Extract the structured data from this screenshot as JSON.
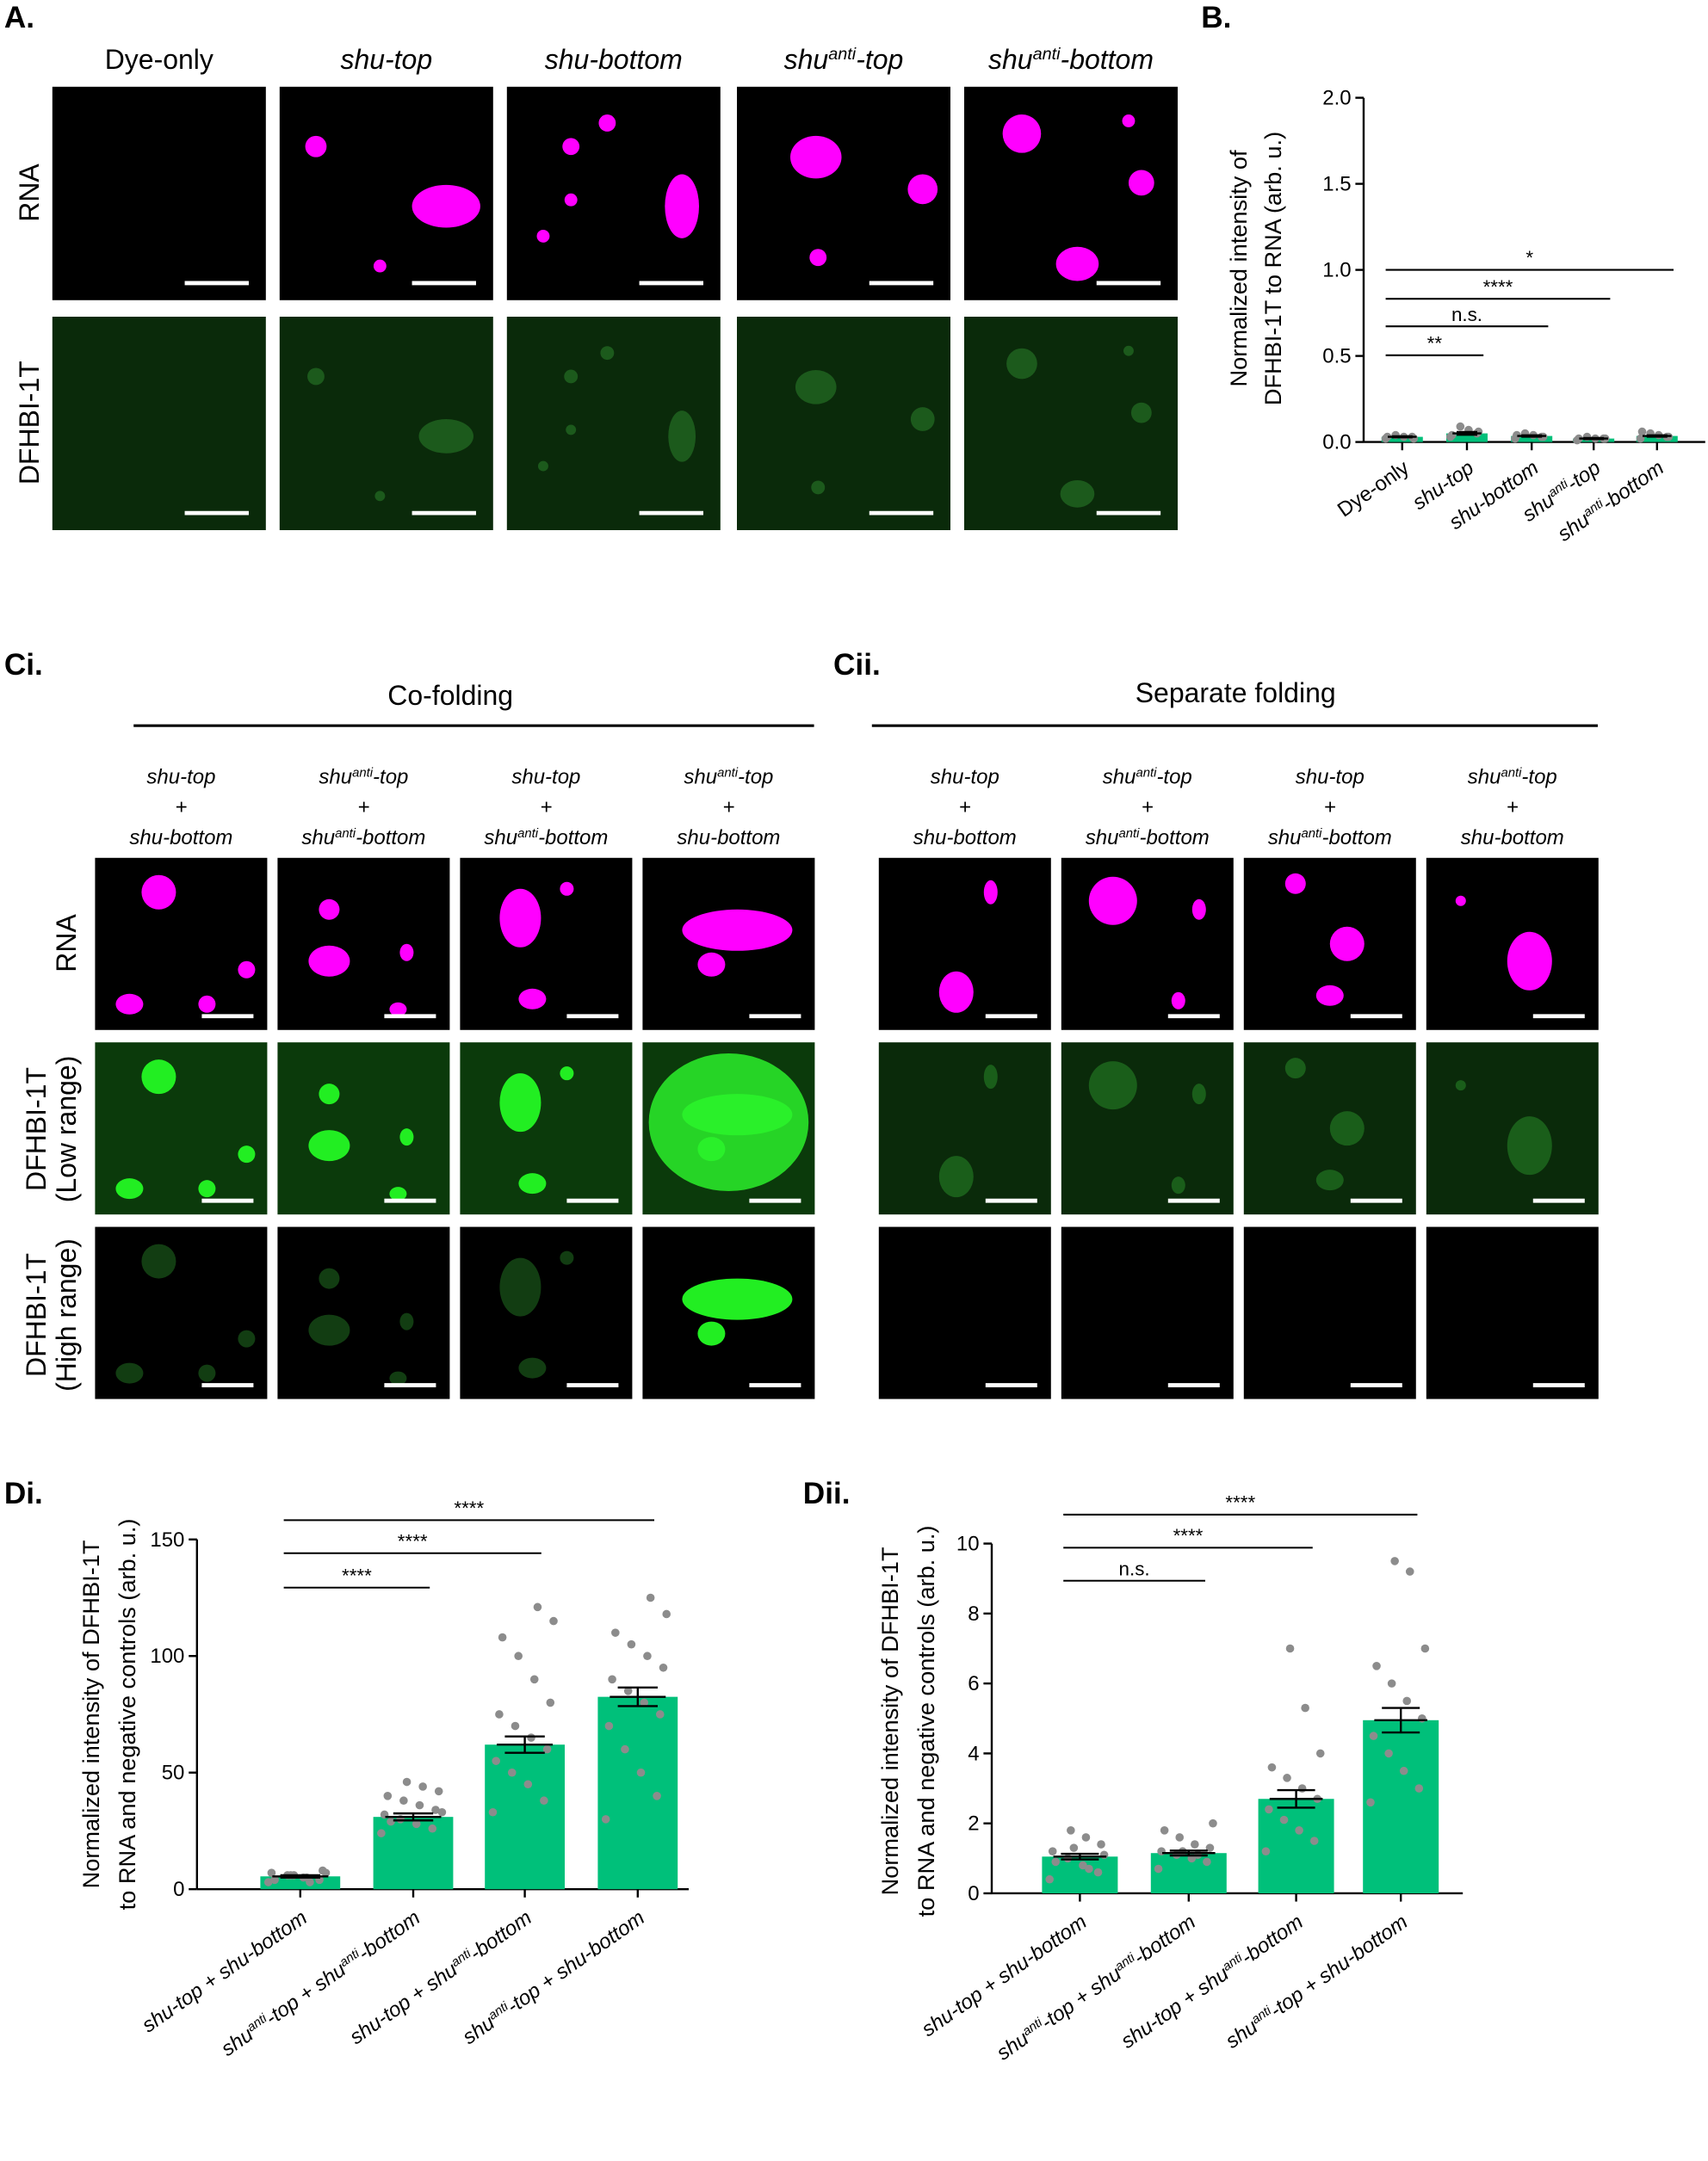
{
  "panel_labels": [
    "A.",
    "B.",
    "Ci.",
    "Cii.",
    "Di.",
    "Dii."
  ],
  "panel_a": {
    "columns": [
      [
        {
          "t": "Dye-only"
        }
      ],
      [
        {
          "t": "shu-top"
        }
      ],
      [
        {
          "t": "shu-bottom"
        }
      ],
      [
        {
          "t": "shu"
        },
        {
          "t": "anti",
          "sup": true
        },
        {
          "t": "-top"
        }
      ],
      [
        {
          "t": "shu"
        },
        {
          "t": "anti",
          "sup": true
        },
        {
          "t": "-bottom"
        }
      ]
    ],
    "rows": [
      "RNA",
      "DFHBI-1T"
    ]
  },
  "panel_c": {
    "headers": [
      "Co-folding",
      "Separate folding"
    ],
    "ci_columns": [
      [
        [
          {
            "t": "shu-top"
          }
        ],
        [
          {
            "t": "+"
          }
        ],
        [
          {
            "t": "shu-bottom"
          }
        ]
      ],
      [
        [
          {
            "t": "shu"
          },
          {
            "t": "anti",
            "sup": true
          },
          {
            "t": "-top"
          }
        ],
        [
          {
            "t": "+"
          }
        ],
        [
          {
            "t": "shu"
          },
          {
            "t": "anti",
            "sup": true
          },
          {
            "t": "-bottom"
          }
        ]
      ],
      [
        [
          {
            "t": "shu-top"
          }
        ],
        [
          {
            "t": "+"
          }
        ],
        [
          {
            "t": "shu"
          },
          {
            "t": "anti",
            "sup": true
          },
          {
            "t": "-bottom"
          }
        ]
      ],
      [
        [
          {
            "t": "shu"
          },
          {
            "t": "anti",
            "sup": true
          },
          {
            "t": "-top"
          }
        ],
        [
          {
            "t": "+"
          }
        ],
        [
          {
            "t": "shu-bottom"
          }
        ]
      ]
    ],
    "cii_columns": [
      [
        [
          {
            "t": "shu-top"
          }
        ],
        [
          {
            "t": "+"
          }
        ],
        [
          {
            "t": "shu-bottom"
          }
        ]
      ],
      [
        [
          {
            "t": "shu"
          },
          {
            "t": "anti",
            "sup": true
          },
          {
            "t": "-top"
          }
        ],
        [
          {
            "t": "+"
          }
        ],
        [
          {
            "t": "shu"
          },
          {
            "t": "anti",
            "sup": true
          },
          {
            "t": "-bottom"
          }
        ]
      ],
      [
        [
          {
            "t": "shu-top"
          }
        ],
        [
          {
            "t": "+"
          }
        ],
        [
          {
            "t": "shu"
          },
          {
            "t": "anti",
            "sup": true
          },
          {
            "t": "-bottom"
          }
        ]
      ],
      [
        [
          {
            "t": "shu"
          },
          {
            "t": "anti",
            "sup": true
          },
          {
            "t": "-top"
          }
        ],
        [
          {
            "t": "+"
          }
        ],
        [
          {
            "t": "shu-bottom"
          }
        ]
      ]
    ],
    "rows": [
      [
        "RNA"
      ],
      [
        "DFHBI-1T",
        "(Low range)"
      ],
      [
        "DFHBI-1T",
        "(High range)"
      ]
    ]
  },
  "chart_data": [
    {
      "type": "bar",
      "ylabel": [
        "Normalized intensity of",
        "DFHBI-1T to RNA (arb. u.)"
      ],
      "categories": [
        [
          {
            "t": "Dye-only"
          }
        ],
        [
          {
            "t": "shu-top"
          }
        ],
        [
          {
            "t": "shu-bottom"
          }
        ],
        [
          {
            "t": "shu"
          },
          {
            "t": "anti",
            "sup": true
          },
          {
            "t": "-top"
          }
        ],
        [
          {
            "t": "shu"
          },
          {
            "t": "anti",
            "sup": true
          },
          {
            "t": "-bottom"
          }
        ]
      ],
      "values": [
        0.03,
        0.05,
        0.035,
        0.02,
        0.035
      ],
      "errors": [
        0.003,
        0.008,
        0.004,
        0.003,
        0.004
      ],
      "points": [
        [
          0.02,
          0.03,
          0.03,
          0.04,
          0.03,
          0.02
        ],
        [
          0.03,
          0.05,
          0.07,
          0.09,
          0.04,
          0.06
        ],
        [
          0.02,
          0.03,
          0.04,
          0.05,
          0.04,
          0.03
        ],
        [
          0.01,
          0.02,
          0.02,
          0.03,
          0.02,
          0.02
        ],
        [
          0.02,
          0.03,
          0.04,
          0.05,
          0.06,
          0.03
        ]
      ],
      "color": "#00c07a",
      "point_color": "#8c8c8c",
      "ylim": [
        0,
        2
      ],
      "yticks": [
        {
          "value": 0,
          "label": "0.0"
        },
        {
          "value": 0.5,
          "label": "0.5"
        },
        {
          "value": 1,
          "label": "1.0"
        },
        {
          "value": 1.5,
          "label": "1.5"
        },
        {
          "value": 2,
          "label": "2.0"
        }
      ],
      "annotations": [
        {
          "label": "**",
          "span": [
            0,
            1
          ]
        },
        {
          "label": "n.s.",
          "span": [
            0,
            2
          ]
        },
        {
          "label": "****",
          "span": [
            0,
            3
          ]
        },
        {
          "label": "*",
          "span": [
            0,
            4
          ]
        }
      ]
    },
    {
      "type": "bar",
      "ylabel": [
        "Normalized intensity of DFHBI-1T",
        "to RNA and negative controls (arb. u.)"
      ],
      "categories": [
        [
          {
            "t": "shu-top + shu-bottom"
          }
        ],
        [
          {
            "t": "shu"
          },
          {
            "t": "anti",
            "sup": true
          },
          {
            "t": "-top + shu"
          },
          {
            "t": "anti",
            "sup": true
          },
          {
            "t": "-bottom"
          }
        ],
        [
          {
            "t": "shu-top + shu"
          },
          {
            "t": "anti",
            "sup": true
          },
          {
            "t": "-bottom"
          }
        ],
        [
          {
            "t": "shu"
          },
          {
            "t": "anti",
            "sup": true
          },
          {
            "t": "-top + shu-bottom"
          }
        ]
      ],
      "values": [
        5.5,
        31,
        62,
        82.5
      ],
      "errors": [
        0.5,
        1.5,
        3.5,
        4
      ],
      "points": [
        [
          3,
          4,
          5,
          6,
          7,
          8,
          5,
          6,
          4,
          7,
          3,
          6
        ],
        [
          24,
          26,
          28,
          30,
          32,
          34,
          36,
          38,
          40,
          42,
          44,
          46,
          29,
          33
        ],
        [
          33,
          38,
          45,
          50,
          55,
          60,
          65,
          70,
          75,
          80,
          90,
          100,
          108,
          115,
          121
        ],
        [
          30,
          40,
          50,
          60,
          70,
          75,
          80,
          85,
          90,
          95,
          100,
          105,
          110,
          118,
          125
        ]
      ],
      "color": "#00c07a",
      "point_color": "#8c8c8c",
      "ylim": [
        0,
        150
      ],
      "yticks": [
        0,
        50,
        100,
        150
      ],
      "annotations": [
        {
          "label": "****",
          "span": [
            0,
            1
          ]
        },
        {
          "label": "****",
          "span": [
            0,
            2
          ]
        },
        {
          "label": "****",
          "span": [
            0,
            3
          ]
        }
      ]
    },
    {
      "type": "bar",
      "ylabel": [
        "Normalized intensity of DFHBI-1T",
        "to RNA and negative controls (arb. u.)"
      ],
      "categories": [
        [
          {
            "t": "shu-top + shu-bottom"
          }
        ],
        [
          {
            "t": "shu"
          },
          {
            "t": "anti",
            "sup": true
          },
          {
            "t": "-top + shu"
          },
          {
            "t": "anti",
            "sup": true
          },
          {
            "t": "-bottom"
          }
        ],
        [
          {
            "t": "shu-top + shu"
          },
          {
            "t": "anti",
            "sup": true
          },
          {
            "t": "-bottom"
          }
        ],
        [
          {
            "t": "shu"
          },
          {
            "t": "anti",
            "sup": true
          },
          {
            "t": "-top + shu-bottom"
          }
        ]
      ],
      "values": [
        1.05,
        1.15,
        2.7,
        4.95
      ],
      "errors": [
        0.08,
        0.07,
        0.25,
        0.35
      ],
      "points": [
        [
          0.4,
          0.6,
          0.8,
          1.0,
          1.2,
          1.4,
          1.6,
          1.8,
          0.9,
          1.1,
          0.7,
          1.3
        ],
        [
          0.7,
          0.9,
          1.0,
          1.1,
          1.2,
          1.3,
          1.4,
          1.6,
          1.8,
          2.0,
          1.1,
          1.2
        ],
        [
          1.2,
          1.5,
          1.8,
          2.1,
          2.4,
          2.7,
          3.0,
          3.3,
          3.6,
          4.0,
          5.3,
          7.0
        ],
        [
          2.6,
          3.0,
          3.5,
          4.0,
          4.5,
          5.0,
          5.5,
          6.0,
          6.5,
          7.0,
          9.2,
          9.5
        ]
      ],
      "color": "#00c07a",
      "point_color": "#8c8c8c",
      "ylim": [
        0,
        10
      ],
      "yticks": [
        0,
        2,
        4,
        6,
        8,
        10
      ],
      "annotations": [
        {
          "label": "n.s.",
          "span": [
            0,
            1
          ]
        },
        {
          "label": "****",
          "span": [
            0,
            2
          ]
        },
        {
          "label": "****",
          "span": [
            0,
            3
          ]
        }
      ]
    }
  ]
}
